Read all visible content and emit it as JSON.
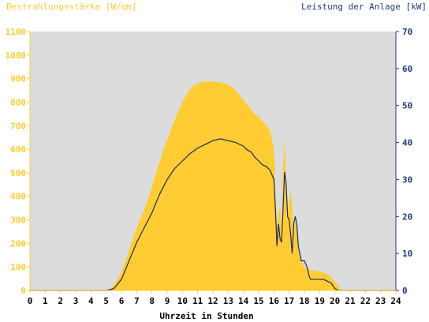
{
  "chart_data": {
    "type": "area",
    "left_axis_title": "Bestrahlungsstärke [W/qm]",
    "right_axis_title": "Leistung der Anlage [kW]",
    "xlabel": "Uhrzeit in Stunden",
    "xlim": [
      0,
      24
    ],
    "ylim_left": [
      0,
      1100
    ],
    "ylim_right": [
      0,
      70
    ],
    "x_ticks": [
      "0",
      "1",
      "2",
      "3",
      "4",
      "5",
      "6",
      "7",
      "8",
      "9",
      "10",
      "11",
      "12",
      "13",
      "14",
      "15",
      "16",
      "17",
      "18",
      "19",
      "20",
      "21",
      "22",
      "23",
      "24"
    ],
    "y_left_ticks": [
      "0",
      "100",
      "200",
      "300",
      "400",
      "500",
      "600",
      "700",
      "800",
      "900",
      "1000",
      "1100"
    ],
    "y_right_ticks": [
      "0",
      "10",
      "20",
      "30",
      "40",
      "50",
      "60",
      "70"
    ],
    "grid": false,
    "colors": {
      "plot_bg": "#dcdcdc",
      "irradiance_fill": "#ffcc33",
      "power_line": "#1f2a5a",
      "left_axis": "#ffcc33",
      "right_axis": "#1f3a7a",
      "xaxis_text": "#000000"
    },
    "series": [
      {
        "axis": "left",
        "style": "area",
        "x": [
          0,
          5,
          5.25,
          5.5,
          5.75,
          6,
          6.25,
          6.5,
          6.75,
          7,
          7.25,
          7.5,
          7.75,
          8,
          8.25,
          8.5,
          8.75,
          9,
          9.25,
          9.5,
          9.75,
          10,
          10.25,
          10.5,
          10.75,
          11,
          11.25,
          11.5,
          11.75,
          12,
          12.25,
          12.5,
          12.75,
          13,
          13.25,
          13.5,
          13.75,
          14,
          14.25,
          14.5,
          14.75,
          15,
          15.25,
          15.5,
          15.75,
          16,
          16.1,
          16.2,
          16.3,
          16.4,
          16.5,
          16.6,
          16.7,
          16.8,
          16.9,
          17,
          17.1,
          17.2,
          17.3,
          17.4,
          17.5,
          17.6,
          17.7,
          17.8,
          17.9,
          18,
          18.1,
          18.2,
          18.3,
          18.4,
          18.5,
          18.75,
          19,
          19.25,
          19.5,
          19.75,
          20,
          20.25,
          20.5,
          24
        ],
        "y": [
          0,
          0,
          5,
          20,
          45,
          80,
          125,
          170,
          220,
          265,
          305,
          345,
          390,
          440,
          495,
          545,
          595,
          640,
          685,
          725,
          765,
          800,
          830,
          855,
          870,
          880,
          885,
          888,
          888,
          888,
          886,
          883,
          880,
          875,
          865,
          850,
          830,
          810,
          790,
          770,
          750,
          735,
          720,
          700,
          680,
          600,
          430,
          260,
          320,
          360,
          250,
          520,
          640,
          470,
          320,
          380,
          420,
          360,
          250,
          300,
          240,
          200,
          160,
          130,
          110,
          100,
          95,
          90,
          88,
          85,
          85,
          83,
          80,
          75,
          70,
          55,
          35,
          15,
          0,
          0
        ]
      },
      {
        "axis": "right",
        "style": "line",
        "x": [
          0,
          5,
          5.5,
          6,
          6.5,
          7,
          7.5,
          8,
          8.5,
          9,
          9.5,
          10,
          10.5,
          11,
          11.5,
          12,
          12.5,
          13,
          13.5,
          14,
          14.25,
          14.5,
          14.75,
          15,
          15.25,
          15.5,
          15.75,
          16,
          16.1,
          16.2,
          16.3,
          16.4,
          16.5,
          16.6,
          16.7,
          16.8,
          16.9,
          17,
          17.1,
          17.2,
          17.3,
          17.4,
          17.5,
          17.6,
          17.7,
          17.8,
          17.9,
          18,
          18.1,
          18.2,
          18.3,
          18.4,
          18.5,
          18.75,
          19,
          19.25,
          19.5,
          19.75,
          20,
          20.25,
          20.5,
          24
        ],
        "y": [
          0,
          0,
          0.5,
          3,
          8,
          13,
          17,
          21,
          26,
          30,
          33,
          35,
          37,
          38.5,
          39.5,
          40.5,
          41,
          40.5,
          40,
          39,
          38,
          37.5,
          36,
          35,
          34,
          33.5,
          32.5,
          30,
          22,
          12,
          18,
          14,
          13,
          22,
          32,
          29,
          20,
          19,
          15,
          10,
          18,
          20,
          18,
          12,
          10,
          8,
          8,
          8,
          7,
          6,
          4,
          3,
          3,
          3,
          3,
          3,
          2.5,
          2,
          0.5,
          0,
          0,
          0
        ]
      }
    ]
  }
}
